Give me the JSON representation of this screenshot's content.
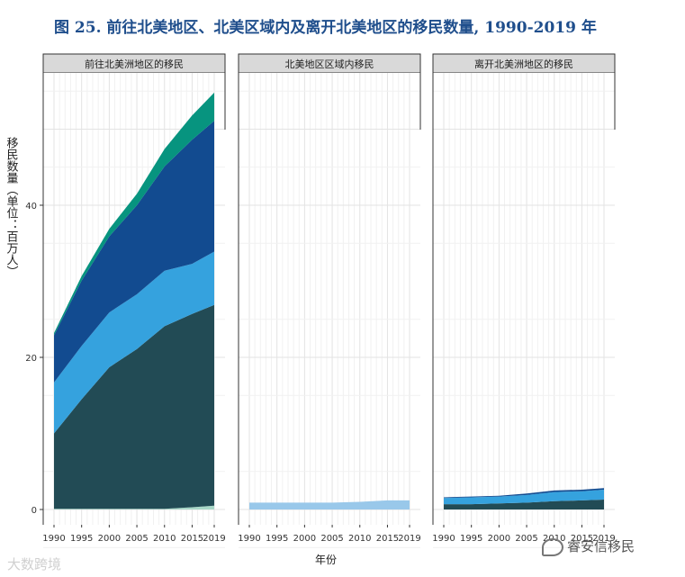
{
  "title": "图 25. 前往北美地区、北美区域内及离开北美地区的移民数量, 1990-2019 年",
  "watermark_left": "大数跨境",
  "watermark_right": "睿安信移民",
  "chart_data": {
    "type": "area",
    "xlabel": "年份",
    "ylabel": "移民数量（单位：百万人）",
    "x": [
      1990,
      1995,
      2000,
      2005,
      2010,
      2015,
      2019
    ],
    "x_tick_labels": [
      "1990",
      "1995",
      "2000",
      "2005",
      "2010",
      "2015",
      "2019"
    ],
    "y_ticks": [
      0,
      20,
      40
    ],
    "ylim": [
      0,
      57
    ],
    "grid": true,
    "stacked": true,
    "colors": {
      "band0": "#a8d8c8",
      "band1": "#224b55",
      "band2": "#35a2de",
      "band3": "#124b90",
      "band4": "#07947f",
      "band5": "#99c8ea"
    },
    "panels": [
      {
        "title": "前往北美洲地区的移民",
        "series": [
          {
            "color_key": "band0",
            "values": [
              0.1,
              0.1,
              0.1,
              0.1,
              0.1,
              0.3,
              0.5
            ]
          },
          {
            "color_key": "band1",
            "values": [
              9.9,
              14.4,
              18.6,
              21.0,
              24.0,
              25.4,
              26.4
            ]
          },
          {
            "color_key": "band2",
            "values": [
              6.7,
              7.0,
              7.2,
              7.2,
              7.3,
              6.6,
              7.0
            ]
          },
          {
            "color_key": "band3",
            "values": [
              6.2,
              8.6,
              10.0,
              11.7,
              13.7,
              16.3,
              17.2
            ]
          },
          {
            "color_key": "band4",
            "values": [
              0.3,
              0.6,
              1.0,
              1.5,
              2.3,
              3.2,
              3.7
            ]
          }
        ]
      },
      {
        "title": "北美地区区域内移民",
        "series": [
          {
            "color_key": "band5",
            "values": [
              0.9,
              0.9,
              0.9,
              0.9,
              1.0,
              1.2,
              1.2
            ]
          }
        ]
      },
      {
        "title": "离开北美洲地区的移民",
        "series": [
          {
            "color_key": "band1",
            "values": [
              0.7,
              0.7,
              0.8,
              0.9,
              1.1,
              1.2,
              1.3
            ]
          },
          {
            "color_key": "band2",
            "values": [
              0.8,
              0.9,
              0.9,
              1.0,
              1.2,
              1.2,
              1.3
            ]
          },
          {
            "color_key": "band3",
            "values": [
              0.1,
              0.1,
              0.1,
              0.2,
              0.2,
              0.2,
              0.2
            ]
          }
        ]
      }
    ]
  }
}
